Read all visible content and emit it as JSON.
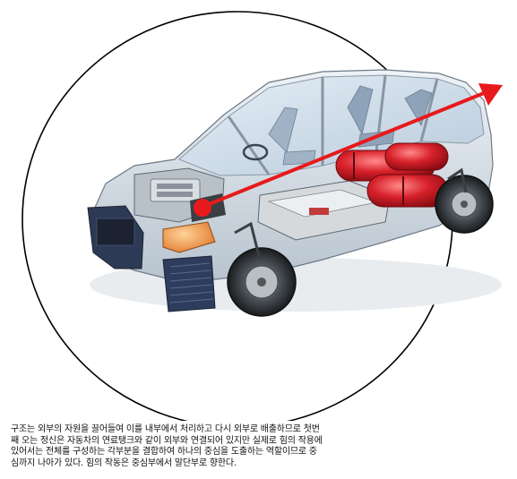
{
  "colors": {
    "background": "#ffffff",
    "circle_stroke": "#000000",
    "arrow": "#e8191c",
    "center_dot": "#e8191c",
    "car_body": "#cfd8e0",
    "tank": "#d0202a"
  },
  "icons": {
    "car": "fuel-cell-car-cutaway",
    "arrow": "force-direction-arrow",
    "dot": "center-of-force-dot",
    "circle": "boundary-circle"
  },
  "caption": {
    "lines": [
      "구조는 외부의 자원을 끌어들여 이를 내부에서 처리하고 다시 외부로 배출하므로 첫번",
      "째 오는 정신은 자동차의 연료탱크와 같이 외부와 연결되어 있지만 실제로 힘의 작용에",
      "있어서는 전체를 구성하는 각부분을 결합하여 하나의 중심을 도출하는 역할이므로 중",
      "심까지 나아가 있다. 힘의 작동은 중심부에서 말단부로 향한다."
    ]
  }
}
